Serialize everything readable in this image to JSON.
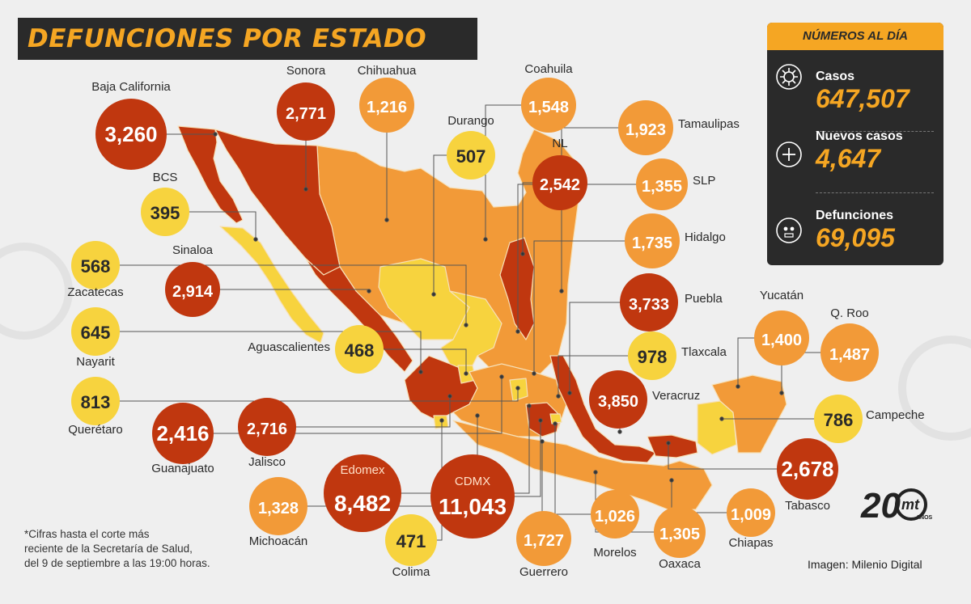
{
  "title": "DEFUNCIONES POR ESTADO",
  "colors": {
    "dark_red": "#c0370f",
    "orange": "#f29a38",
    "yellow": "#f7d33e",
    "panel": "#2a2a2a",
    "accent": "#f5a623"
  },
  "panel": {
    "header": "NÚMEROS AL DÍA",
    "stats": [
      {
        "label": "Casos",
        "value": "647,507",
        "icon": "virus-icon"
      },
      {
        "label": "Nuevos casos",
        "value": "4,647",
        "icon": "plus-icon"
      },
      {
        "label": "Defunciones",
        "value": "69,095",
        "icon": "skull-icon"
      }
    ]
  },
  "states": [
    {
      "name": "Baja California",
      "value": "3,260",
      "level": "red"
    },
    {
      "name": "Sonora",
      "value": "2,771",
      "level": "red"
    },
    {
      "name": "Chihuahua",
      "value": "1,216",
      "level": "orange"
    },
    {
      "name": "Durango",
      "value": "507",
      "level": "yellow"
    },
    {
      "name": "Coahuila",
      "value": "1,548",
      "level": "orange"
    },
    {
      "name": "NL",
      "value": "2,542",
      "level": "red"
    },
    {
      "name": "Tamaulipas",
      "value": "1,923",
      "level": "orange"
    },
    {
      "name": "SLP",
      "value": "1,355",
      "level": "orange"
    },
    {
      "name": "Hidalgo",
      "value": "1,735",
      "level": "orange"
    },
    {
      "name": "Puebla",
      "value": "3,733",
      "level": "red"
    },
    {
      "name": "Tlaxcala",
      "value": "978",
      "level": "yellow"
    },
    {
      "name": "Veracruz",
      "value": "3,850",
      "level": "red"
    },
    {
      "name": "Yucatán",
      "value": "1,400",
      "level": "orange"
    },
    {
      "name": "Q. Roo",
      "value": "1,487",
      "level": "orange"
    },
    {
      "name": "Campeche",
      "value": "786",
      "level": "yellow"
    },
    {
      "name": "Tabasco",
      "value": "2,678",
      "level": "red"
    },
    {
      "name": "Chiapas",
      "value": "1,009",
      "level": "orange"
    },
    {
      "name": "Oaxaca",
      "value": "1,305",
      "level": "orange"
    },
    {
      "name": "Morelos",
      "value": "1,026",
      "level": "orange"
    },
    {
      "name": "Guerrero",
      "value": "1,727",
      "level": "orange"
    },
    {
      "name": "CDMX",
      "value": "11,043",
      "level": "red"
    },
    {
      "name": "Edomex",
      "value": "8,482",
      "level": "red"
    },
    {
      "name": "Colima",
      "value": "471",
      "level": "yellow"
    },
    {
      "name": "Michoacán",
      "value": "1,328",
      "level": "orange"
    },
    {
      "name": "Jalisco",
      "value": "2,716",
      "level": "red"
    },
    {
      "name": "Guanajuato",
      "value": "2,416",
      "level": "red"
    },
    {
      "name": "Querétaro",
      "value": "813",
      "level": "yellow"
    },
    {
      "name": "Nayarit",
      "value": "645",
      "level": "yellow"
    },
    {
      "name": "Zacatecas",
      "value": "568",
      "level": "yellow"
    },
    {
      "name": "Aguascalientes",
      "value": "468",
      "level": "yellow"
    },
    {
      "name": "Sinaloa",
      "value": "2,914",
      "level": "red"
    },
    {
      "name": "BCS",
      "value": "395",
      "level": "yellow"
    }
  ],
  "footnote": [
    "*Cifras hasta el corte más",
    "reciente de la Secretaría de Salud,",
    "del 9 de septiembre a las 19:00 horas."
  ],
  "credit": "Imagen: Milenio Digital",
  "logo": {
    "number": "20",
    "brand": "mt",
    "sub": "AÑOS"
  }
}
